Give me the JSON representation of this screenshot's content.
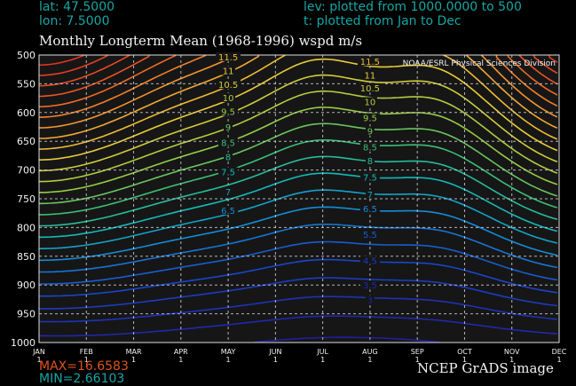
{
  "header": {
    "lat": "lat: 47.5000",
    "lon": "lon: 7.5000",
    "lev": "lev: plotted from 1000.0000 to 500",
    "t": "t: plotted from Jan to Dec"
  },
  "colors": {
    "header": "#14a7a5",
    "max": "#e0541a",
    "min": "#14a7a5",
    "background": "#000000",
    "plot": "#161616"
  },
  "chart_data": {
    "type": "contour",
    "title": "Monthly Longterm Mean (1968-1996) wspd m/s",
    "credit": "NOAA/ESRL Physical Sciences Division",
    "x_ticks": [
      {
        "label": "JAN",
        "sub": "1"
      },
      {
        "label": "FEB",
        "sub": "1"
      },
      {
        "label": "MAR",
        "sub": "1"
      },
      {
        "label": "APR",
        "sub": "1"
      },
      {
        "label": "MAY",
        "sub": "1"
      },
      {
        "label": "JUN",
        "sub": "1"
      },
      {
        "label": "JUL",
        "sub": "1"
      },
      {
        "label": "AUG",
        "sub": "1"
      },
      {
        "label": "SEP",
        "sub": "1"
      },
      {
        "label": "OCT",
        "sub": "1"
      },
      {
        "label": "NOV",
        "sub": "1"
      },
      {
        "label": "DEC",
        "sub": "1"
      }
    ],
    "y_ticks": [
      "500",
      "550",
      "600",
      "650",
      "700",
      "750",
      "800",
      "850",
      "900",
      "950",
      "1000"
    ],
    "ylim": [
      1000,
      500
    ],
    "xlim": [
      0,
      11
    ],
    "contour_labels": [
      {
        "text": "11.5",
        "x": 4,
        "p": 503
      },
      {
        "text": "11",
        "x": 4,
        "p": 527
      },
      {
        "text": "10.5",
        "x": 4,
        "p": 551
      },
      {
        "text": "10",
        "x": 4,
        "p": 574
      },
      {
        "text": "9.5",
        "x": 4,
        "p": 598
      },
      {
        "text": "9",
        "x": 4,
        "p": 625
      },
      {
        "text": "8.5",
        "x": 4,
        "p": 652
      },
      {
        "text": "8",
        "x": 4,
        "p": 677
      },
      {
        "text": "7.5",
        "x": 4,
        "p": 703
      },
      {
        "text": "7",
        "x": 4,
        "p": 738
      },
      {
        "text": "6.5",
        "x": 4,
        "p": 770
      },
      {
        "text": "11.5",
        "x": 7,
        "p": 511
      },
      {
        "text": "11",
        "x": 7,
        "p": 535
      },
      {
        "text": "10.5",
        "x": 7,
        "p": 557
      },
      {
        "text": "10",
        "x": 7,
        "p": 581
      },
      {
        "text": "9.5",
        "x": 7,
        "p": 609
      },
      {
        "text": "9",
        "x": 7,
        "p": 632
      },
      {
        "text": "8.5",
        "x": 7,
        "p": 660
      },
      {
        "text": "8",
        "x": 7,
        "p": 684
      },
      {
        "text": "7.5",
        "x": 7,
        "p": 712
      },
      {
        "text": "7",
        "x": 7,
        "p": 742
      },
      {
        "text": "6.5",
        "x": 7,
        "p": 767
      },
      {
        "text": "5.5",
        "x": 7,
        "p": 812
      },
      {
        "text": "4.5",
        "x": 7,
        "p": 857
      },
      {
        "text": "3.5",
        "x": 7,
        "p": 900
      },
      {
        "text": "3",
        "x": 7,
        "p": 925
      }
    ],
    "levels": [
      3,
      3.5,
      4,
      4.5,
      5,
      5.5,
      6,
      6.5,
      7,
      7.5,
      8,
      8.5,
      9,
      9.5,
      10,
      10.5,
      11,
      11.5,
      12,
      12.5,
      13,
      13.5,
      14,
      14.5,
      15,
      15.5,
      16,
      16.5
    ],
    "max_label": "MAX=16.6583",
    "min_label": "MIN=2.66103"
  },
  "footer": {
    "credit": "NCEP GrADS image"
  }
}
